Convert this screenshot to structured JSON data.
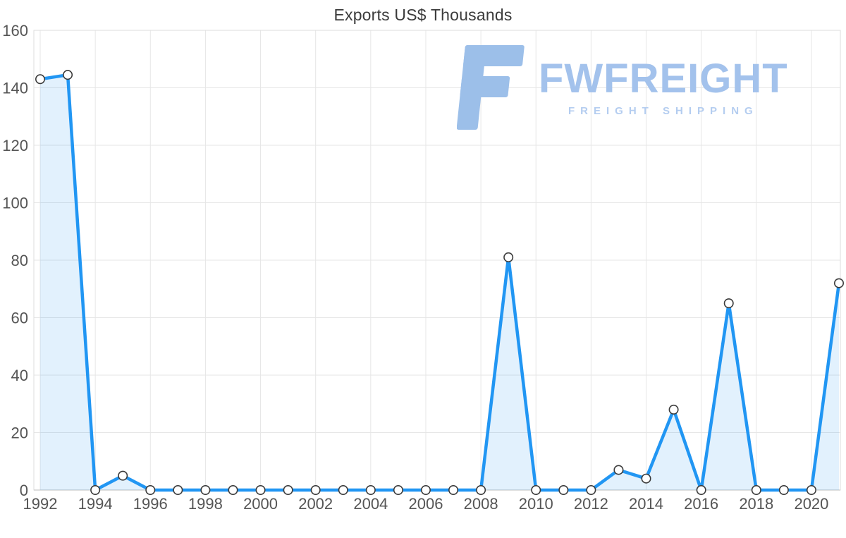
{
  "logo": {
    "name": "FWFREIGHT",
    "tagline": "FREIGHT SHIPPING"
  },
  "chart_data": {
    "type": "area",
    "title": "Exports US$ Thousands",
    "series_name": "Exports US$ Thousands",
    "x": [
      1992,
      1993,
      1994,
      1995,
      1996,
      1997,
      1998,
      1999,
      2000,
      2001,
      2002,
      2003,
      2004,
      2005,
      2006,
      2007,
      2008,
      2009,
      2010,
      2011,
      2012,
      2013,
      2014,
      2015,
      2016,
      2017,
      2018,
      2019,
      2020,
      2021
    ],
    "values": [
      143,
      144.5,
      0,
      5,
      0,
      0,
      0,
      0,
      0,
      0,
      0,
      0,
      0,
      0,
      0,
      0,
      0,
      81,
      0,
      0,
      0,
      7,
      4,
      28,
      0,
      65,
      0,
      0,
      0,
      72
    ],
    "xlabel": "",
    "ylabel": "",
    "ylim": [
      0,
      160
    ],
    "yticks": [
      0,
      20,
      40,
      60,
      80,
      100,
      120,
      140,
      160
    ],
    "xticks": [
      1992,
      1994,
      1996,
      1998,
      2000,
      2002,
      2004,
      2006,
      2008,
      2010,
      2012,
      2014,
      2016,
      2018,
      2020
    ],
    "grid": true,
    "legend": false,
    "colors": {
      "line": "#2196f3",
      "area_fill": "#2196f3",
      "marker_fill": "#ffffff",
      "marker_border": "#3a3a3a",
      "gridline": "#e6e6e6",
      "axis": "#c9c9c9",
      "tick_text": "#555555",
      "title_text": "#3b3b3b",
      "logo_blue": "#a3c2ec"
    }
  }
}
